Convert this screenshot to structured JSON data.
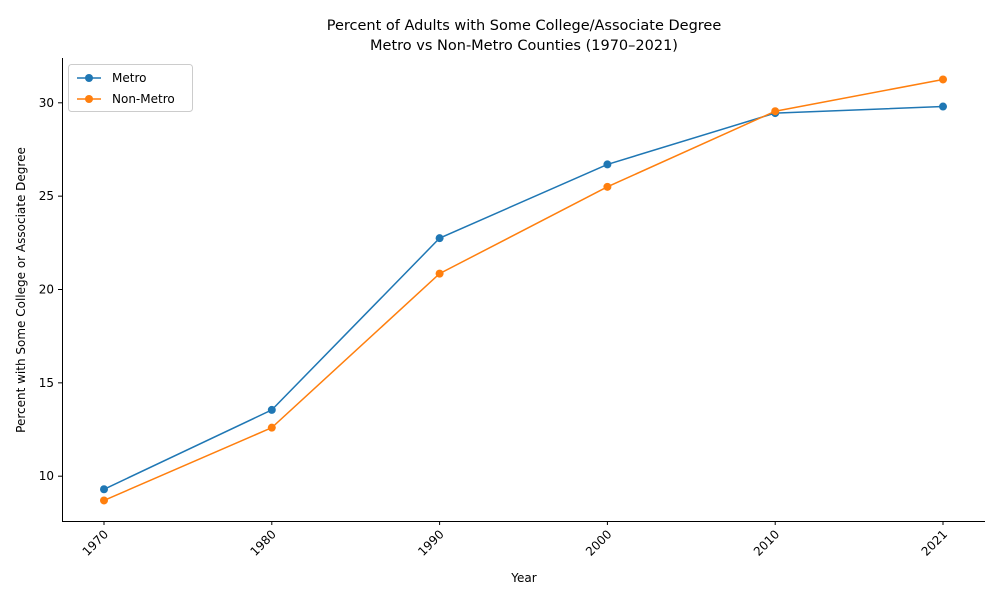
{
  "chart_data": {
    "type": "line",
    "title_line1": "Percent of Adults with Some College/Associate Degree",
    "title_line2": "Metro vs Non-Metro Counties (1970–2021)",
    "xlabel": "Year",
    "ylabel": "Percent with Some College or Associate Degree",
    "categories": [
      "1970",
      "1980",
      "1990",
      "2000",
      "2010",
      "2021"
    ],
    "ylim": [
      7.6,
      32.4
    ],
    "yticks": [
      10,
      15,
      20,
      25,
      30
    ],
    "ytick_labels": [
      "10",
      "15",
      "20",
      "25",
      "30"
    ],
    "grid": false,
    "legend_position": "upper-left",
    "series": [
      {
        "name": "Metro",
        "color": "#1f77b4",
        "values": [
          9.3,
          13.55,
          22.75,
          26.7,
          29.45,
          29.8
        ]
      },
      {
        "name": "Non-Metro",
        "color": "#ff7f0e",
        "values": [
          8.7,
          12.6,
          20.85,
          25.5,
          29.55,
          31.25
        ]
      }
    ]
  }
}
